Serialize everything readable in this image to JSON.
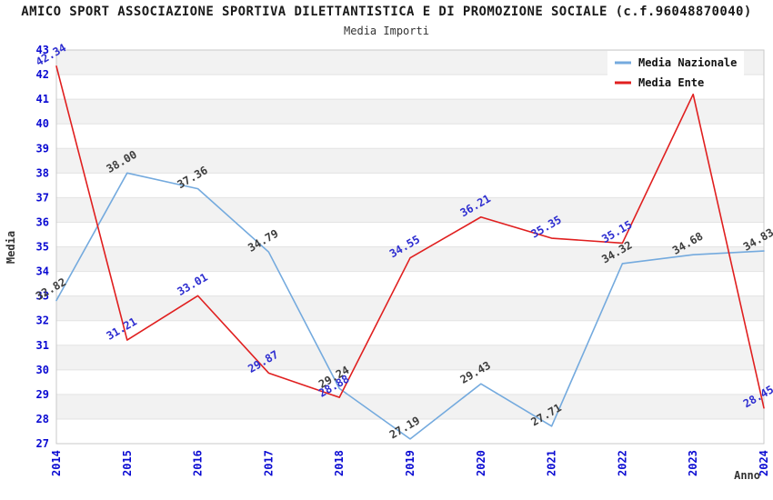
{
  "header": {
    "title": "AMICO SPORT ASSOCIAZIONE SPORTIVA DILETTANTISTICA E DI PROMOZIONE SOCIALE (c.f.96048870040)",
    "subtitle": "Media Importi"
  },
  "axes": {
    "x_title": "Anno",
    "y_title": "Media",
    "x_tick_labels": [
      "2014",
      "2015",
      "2016",
      "2017",
      "2018",
      "2019",
      "2020",
      "2021",
      "2022",
      "2023",
      "2024"
    ],
    "y_tick_min": 27,
    "y_tick_max": 43,
    "tick_color": "#0a0ad2",
    "axis_title_color": "#333333"
  },
  "legend": {
    "position": "top-right",
    "entries": [
      {
        "label": "Media Nazionale",
        "color": "#74aade"
      },
      {
        "label": "Media Ente",
        "color": "#e01f1f"
      }
    ]
  },
  "chart_data": {
    "type": "line",
    "title": "Media Importi",
    "xlabel": "Anno",
    "ylabel": "Media",
    "x": [
      2014,
      2015,
      2016,
      2017,
      2018,
      2019,
      2020,
      2021,
      2022,
      2023,
      2024
    ],
    "ylim": [
      27,
      43
    ],
    "grid": "horizontal-alternating-bands",
    "legend_position": "top-right",
    "band_colors": {
      "white": "#ffffff",
      "gray": "#f2f2f2"
    },
    "gridline_color": "#e3e3e3",
    "border_color": "#c9c9c9",
    "series": [
      {
        "name": "Media Nazionale",
        "color": "#74aade",
        "label_color": "#3d3d3d",
        "values": [
          32.82,
          38.0,
          37.36,
          34.79,
          29.24,
          27.19,
          29.43,
          27.71,
          34.32,
          34.68,
          34.83
        ],
        "point_labels": [
          "32.82",
          "38.00",
          "37.36",
          "34.79",
          "29.24",
          "27.19",
          "29.43",
          "27.71",
          "34.32",
          "34.68",
          "34.83"
        ]
      },
      {
        "name": "Media Ente",
        "color": "#e01f1f",
        "label_color": "#2d2dd0",
        "values": [
          42.34,
          31.21,
          33.01,
          29.87,
          28.88,
          34.55,
          36.21,
          35.35,
          35.15,
          41.2,
          28.45
        ],
        "point_labels": [
          "42.34",
          "31.21",
          "33.01",
          "29.87",
          "28.88",
          "34.55",
          "36.21",
          "35.35",
          "35.15",
          null,
          "28.45"
        ]
      }
    ]
  }
}
